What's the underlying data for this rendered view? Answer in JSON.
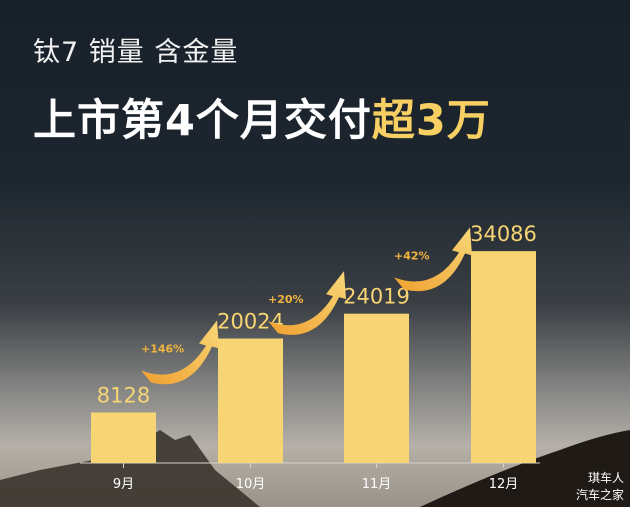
{
  "header": {
    "subtitle": "钛7 销量 含金量",
    "title_main": "上市第4个月交付",
    "title_highlight": "超3万"
  },
  "chart_data": {
    "type": "bar",
    "categories": [
      "9月",
      "10月",
      "11月",
      "12月"
    ],
    "values": [
      8128,
      20024,
      24019,
      34086
    ],
    "data_labels": [
      "8128",
      "20024",
      "24019",
      "34086"
    ],
    "growth_annotations": [
      "+146%",
      "+20%",
      "+42%"
    ],
    "ylim": [
      0,
      37000
    ],
    "grid": false,
    "bar_color": "#f7d474",
    "label_color": "#f7d474",
    "arrow_color": "#f2b440"
  },
  "watermark": {
    "line1": "琪车人",
    "line2": "汽车之家"
  }
}
